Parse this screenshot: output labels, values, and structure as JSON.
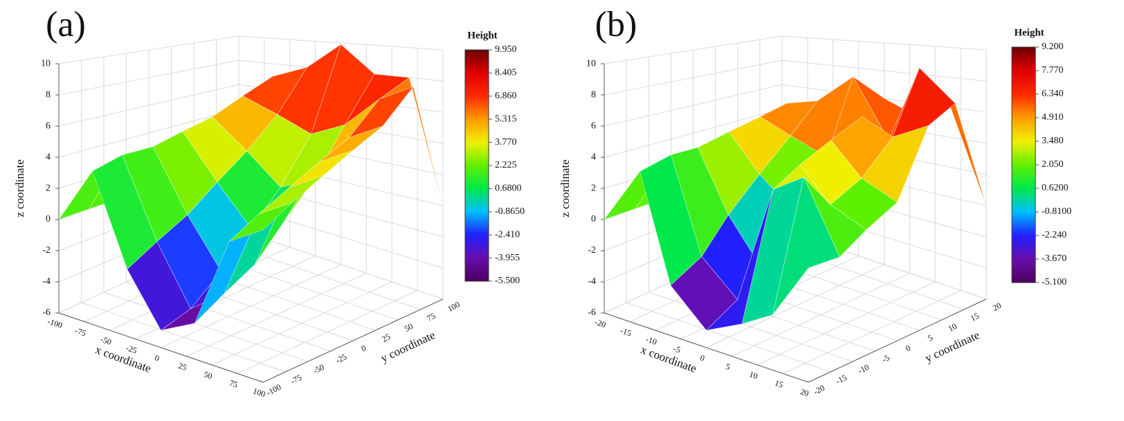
{
  "chart_data": [
    {
      "type": "surface",
      "label": "(a)",
      "xlabel": "x coordinate",
      "ylabel": "y coordinate",
      "zlabel": "z coordinate",
      "colorbar_title": "Height",
      "xlim": [
        -100,
        100
      ],
      "ylim": [
        -100,
        100
      ],
      "zlim": [
        -6,
        10
      ],
      "xticks": [
        -100,
        -75,
        -50,
        -25,
        0,
        25,
        50,
        75,
        100
      ],
      "yticks": [
        -100,
        -75,
        -50,
        -25,
        0,
        25,
        50,
        75,
        100
      ],
      "zticks": [
        -6,
        -4,
        -2,
        0,
        2,
        4,
        6,
        8,
        10
      ],
      "clim": [
        -5.5,
        9.95
      ],
      "cticks": [
        {
          "value": 9.95,
          "label": "9.950"
        },
        {
          "value": 8.405,
          "label": "8.405"
        },
        {
          "value": 6.86,
          "label": "6.860"
        },
        {
          "value": 5.315,
          "label": "5.315"
        },
        {
          "value": 3.77,
          "label": "3.770"
        },
        {
          "value": 2.225,
          "label": "2.225"
        },
        {
          "value": 0.68,
          "label": "0.6800"
        },
        {
          "value": -0.865,
          "label": "-0.8650"
        },
        {
          "value": -2.41,
          "label": "-2.410"
        },
        {
          "value": -3.955,
          "label": "-3.955"
        },
        {
          "value": -5.5,
          "label": "-5.500"
        }
      ],
      "colormap": [
        "#4b0060",
        "#6a0dad",
        "#2020ff",
        "#00bfff",
        "#00e84a",
        "#60f000",
        "#f0f000",
        "#ff9a00",
        "#ff2a00",
        "#e00000",
        "#6b0000"
      ],
      "grid": true,
      "x": [
        -100,
        -67,
        -33,
        0,
        33,
        67,
        100
      ],
      "y": [
        -100,
        -67,
        -33,
        0,
        33,
        67,
        100
      ],
      "z": [
        [
          0,
          3.5,
          -2,
          -5,
          -4,
          1,
          2
        ],
        [
          0,
          4,
          -1,
          -4.5,
          -3,
          2,
          3
        ],
        [
          0,
          4,
          0,
          -3,
          -2,
          3,
          4
        ],
        [
          0,
          4.5,
          1.5,
          -1,
          0,
          4,
          5
        ],
        [
          0,
          5,
          3,
          1,
          2,
          5,
          6
        ],
        [
          0,
          6,
          5,
          4,
          5,
          7,
          8
        ],
        [
          0,
          7,
          8,
          9.9,
          8,
          8,
          0
        ]
      ]
    },
    {
      "type": "surface",
      "label": "(b)",
      "xlabel": "x coordinate",
      "ylabel": "y coordinate",
      "zlabel": "z coordinate",
      "colorbar_title": "Height",
      "xlim": [
        -20,
        20
      ],
      "ylim": [
        -20,
        20
      ],
      "zlim": [
        -6,
        10
      ],
      "xticks": [
        -20,
        -15,
        -10,
        -5,
        0,
        5,
        10,
        15,
        20
      ],
      "yticks": [
        -20,
        -15,
        -10,
        -5,
        0,
        5,
        10,
        15,
        20
      ],
      "zticks": [
        -6,
        -4,
        -2,
        0,
        2,
        4,
        6,
        8,
        10
      ],
      "clim": [
        -5.1,
        9.2
      ],
      "cticks": [
        {
          "value": 9.2,
          "label": "9.200"
        },
        {
          "value": 7.77,
          "label": "7.770"
        },
        {
          "value": 6.34,
          "label": "6.340"
        },
        {
          "value": 4.91,
          "label": "4.910"
        },
        {
          "value": 3.48,
          "label": "3.480"
        },
        {
          "value": 2.05,
          "label": "2.050"
        },
        {
          "value": 0.62,
          "label": "0.6200"
        },
        {
          "value": -0.81,
          "label": "-0.8100"
        },
        {
          "value": -2.24,
          "label": "-2.240"
        },
        {
          "value": -3.67,
          "label": "-3.670"
        },
        {
          "value": -5.1,
          "label": "-5.100"
        }
      ],
      "colormap": [
        "#4b0060",
        "#6a0dad",
        "#2020ff",
        "#00bfff",
        "#00e84a",
        "#60f000",
        "#f0f000",
        "#ff9a00",
        "#ff2a00",
        "#e00000",
        "#6b0000"
      ],
      "grid": true,
      "x": [
        -20,
        -13,
        -7,
        0,
        7,
        13,
        20
      ],
      "y": [
        -20,
        -13,
        -7,
        0,
        7,
        13,
        20
      ],
      "z": [
        [
          0,
          3.5,
          -3,
          -5,
          -4,
          -3,
          0
        ],
        [
          0,
          4,
          -2,
          -4,
          3,
          4,
          0
        ],
        [
          0,
          4,
          0,
          -3,
          4,
          2,
          1
        ],
        [
          0,
          4.5,
          2,
          0,
          5,
          3,
          2
        ],
        [
          0,
          5,
          4,
          3,
          6,
          5,
          6
        ],
        [
          0,
          5.5,
          6,
          8,
          4,
          9,
          7
        ],
        [
          0,
          5,
          6,
          6,
          5,
          6,
          0
        ]
      ]
    }
  ]
}
